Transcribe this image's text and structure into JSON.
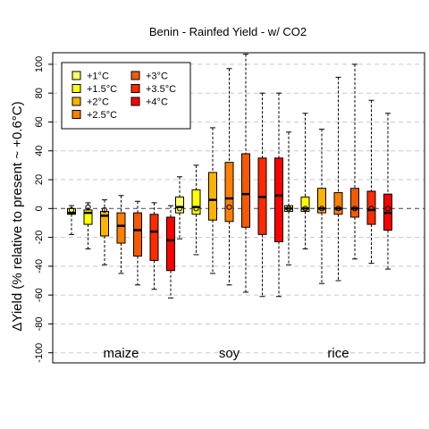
{
  "chart_data": {
    "type": "boxplot",
    "title": "Benin - Rainfed Yield - w/ CO2",
    "ylabel": "ΔYield (% relative to present ~ +0.6°C)",
    "xlabel": "",
    "ylim": [
      -107,
      108
    ],
    "yticks": [
      -100,
      -80,
      -60,
      -40,
      -20,
      0,
      20,
      40,
      60,
      80,
      100
    ],
    "grid": "horizontal-dashed",
    "reference_line": 0,
    "legend": {
      "placement": "top-left",
      "entries": [
        {
          "label": "+1°C",
          "color": "#ffff66"
        },
        {
          "label": "+1.5°C",
          "color": "#ffff00"
        },
        {
          "label": "+2°C",
          "color": "#ffb300"
        },
        {
          "label": "+2.5°C",
          "color": "#ff8000"
        },
        {
          "label": "+3°C",
          "color": "#f45a00"
        },
        {
          "label": "+3.5°C",
          "color": "#ff2a00"
        },
        {
          "label": "+4°C",
          "color": "#ff0000"
        }
      ]
    },
    "groups": [
      {
        "name": "maize",
        "boxes": [
          {
            "min": -18,
            "q1": -4,
            "median": -3,
            "q3": 0,
            "max": 2,
            "mean": -1
          },
          {
            "min": -28,
            "q1": -11,
            "median": -3,
            "q3": -1,
            "max": 4,
            "mean": 1
          },
          {
            "min": -39,
            "q1": -19,
            "median": -5,
            "q3": -2,
            "max": 6,
            "mean": -1
          },
          {
            "min": -45,
            "q1": -24,
            "median": -12,
            "q3": -3,
            "max": 9
          },
          {
            "min": -53,
            "q1": -33,
            "median": -15,
            "q3": -3,
            "max": 5
          },
          {
            "min": -56,
            "q1": -36,
            "median": -16,
            "q3": -4,
            "max": 4
          },
          {
            "min": -62,
            "q1": -43,
            "median": -22,
            "q3": -6,
            "max": 2
          }
        ]
      },
      {
        "name": "soy",
        "boxes": [
          {
            "min": -21,
            "q1": -3,
            "median": 1,
            "q3": 8,
            "max": 22,
            "mean": 0
          },
          {
            "min": -32,
            "q1": -4,
            "median": 1,
            "q3": 13,
            "max": 30,
            "mean": 0
          },
          {
            "min": -45,
            "q1": -8,
            "median": 6,
            "q3": 25,
            "max": 56
          },
          {
            "min": -53,
            "q1": -9,
            "median": 7,
            "q3": 32,
            "max": 97,
            "mean": 1
          },
          {
            "min": -58,
            "q1": -13,
            "median": 10,
            "q3": 38,
            "max": 107
          },
          {
            "min": -61,
            "q1": -18,
            "median": 8,
            "q3": 35,
            "max": 80
          },
          {
            "min": -61,
            "q1": -23,
            "median": 9,
            "q3": 35,
            "max": 80
          }
        ]
      },
      {
        "name": "rice",
        "boxes": [
          {
            "min": -39,
            "q1": -2,
            "median": 0,
            "q3": 2,
            "max": 53,
            "mean": 0
          },
          {
            "min": -28,
            "q1": -2,
            "median": 0,
            "q3": 8,
            "max": 66,
            "mean": 0
          },
          {
            "min": -52,
            "q1": -3,
            "median": 0,
            "q3": 14,
            "max": 55,
            "mean": 0
          },
          {
            "min": -50,
            "q1": -4,
            "median": 0,
            "q3": 11,
            "max": 91,
            "mean": 0
          },
          {
            "min": -35,
            "q1": -6,
            "median": 0,
            "q3": 14,
            "max": 100,
            "mean": 0
          },
          {
            "min": -38,
            "q1": -11,
            "median": -1,
            "q3": 12,
            "max": 75,
            "mean": 0
          },
          {
            "min": -42,
            "q1": -15,
            "median": -3,
            "q3": 10,
            "max": 66,
            "mean": 0
          }
        ]
      }
    ]
  }
}
